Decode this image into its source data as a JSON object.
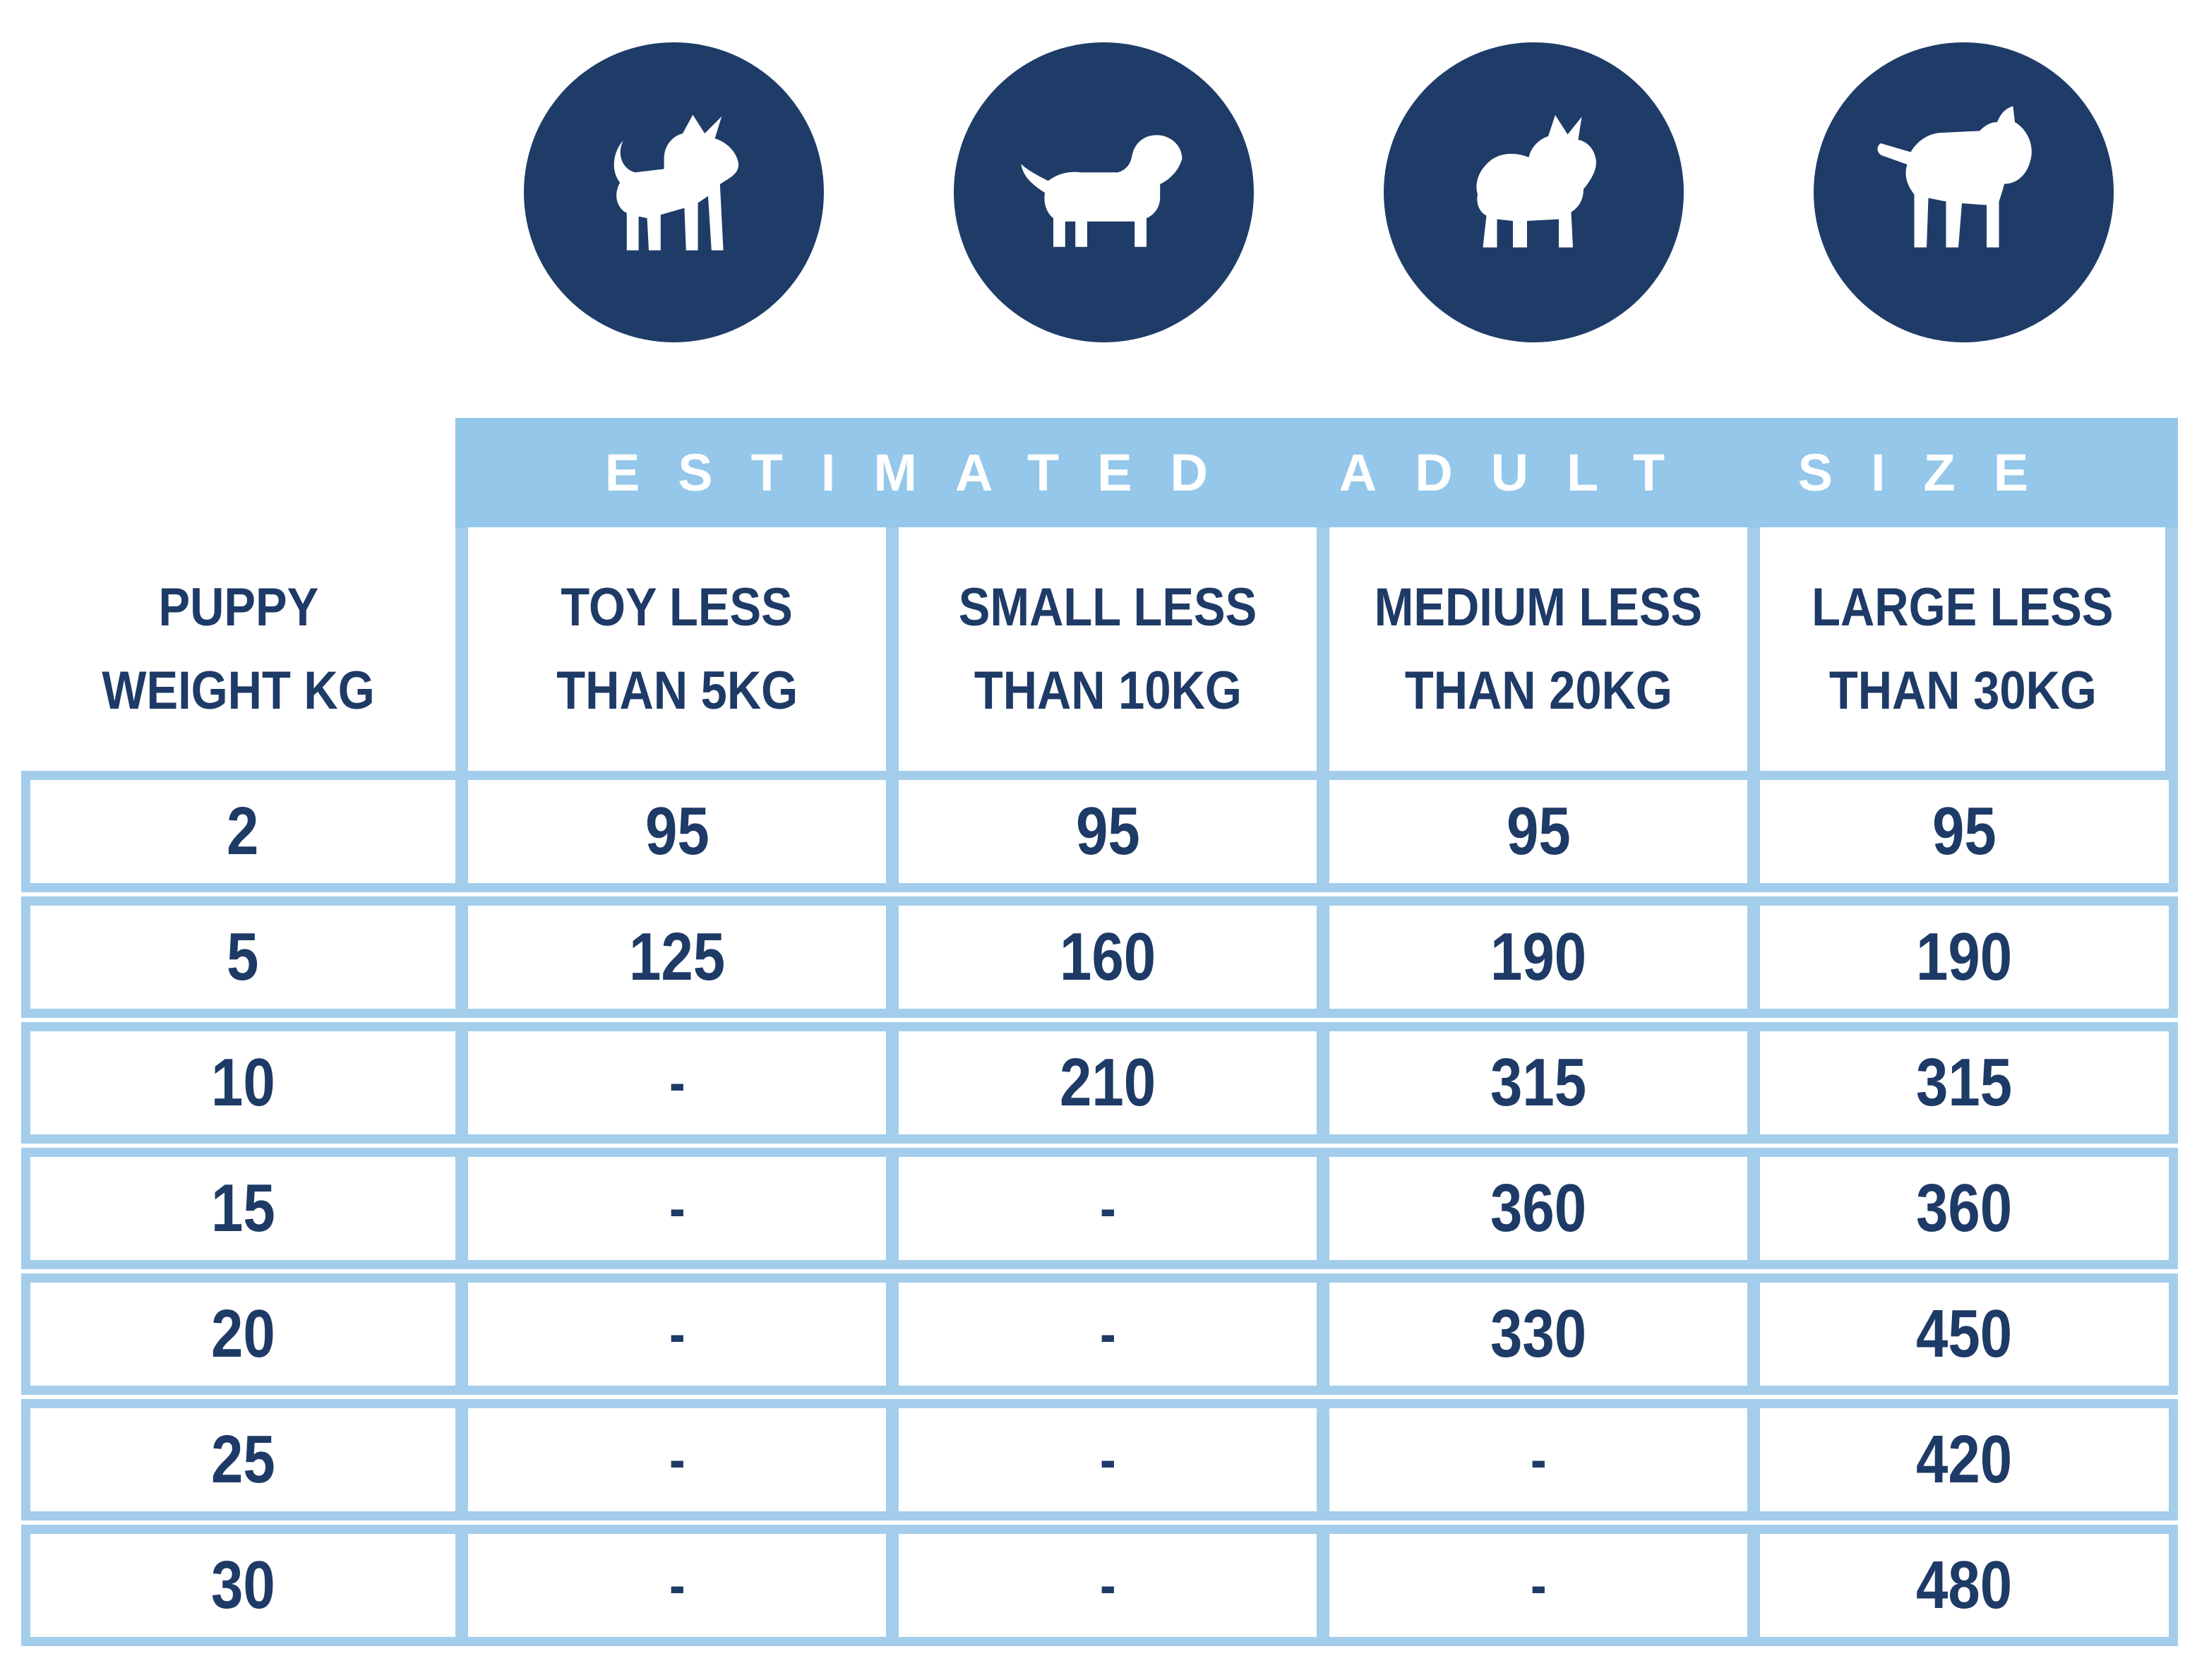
{
  "colors": {
    "icon_navy": "#1f3c68",
    "text_navy": "#1e3a66",
    "banner_blue": "#94c7ea",
    "border_blue": "#a3cdeb",
    "background": "#ffffff"
  },
  "icons": [
    "chihuahua-icon",
    "dachshund-icon",
    "corgi-icon",
    "bull-terrier-icon"
  ],
  "chart_data": {
    "type": "table",
    "title": "ESTIMATED ADULT SIZE",
    "row_header": "PUPPY WEIGHT KG",
    "row_header_lines": [
      "PUPPY",
      "WEIGHT KG"
    ],
    "columns": [
      {
        "label": "TOY LESS THAN 5KG",
        "lines": [
          "TOY LESS",
          "THAN 5KG"
        ]
      },
      {
        "label": "SMALL LESS THAN 10KG",
        "lines": [
          "SMALL LESS",
          "THAN 10KG"
        ]
      },
      {
        "label": "MEDIUM LESS THAN 20KG",
        "lines": [
          "MEDIUM LESS",
          "THAN 20KG"
        ]
      },
      {
        "label": "LARGE LESS THAN 30KG",
        "lines": [
          "LARGE LESS",
          "THAN 30KG"
        ]
      }
    ],
    "rows": [
      {
        "weight": "2",
        "values": [
          "95",
          "95",
          "95",
          "95"
        ]
      },
      {
        "weight": "5",
        "values": [
          "125",
          "160",
          "190",
          "190"
        ]
      },
      {
        "weight": "10",
        "values": [
          "-",
          "210",
          "315",
          "315"
        ]
      },
      {
        "weight": "15",
        "values": [
          "-",
          "-",
          "360",
          "360"
        ]
      },
      {
        "weight": "20",
        "values": [
          "-",
          "-",
          "330",
          "450"
        ]
      },
      {
        "weight": "25",
        "values": [
          "-",
          "-",
          "-",
          "420"
        ]
      },
      {
        "weight": "30",
        "values": [
          "-",
          "-",
          "-",
          "480"
        ]
      }
    ]
  }
}
